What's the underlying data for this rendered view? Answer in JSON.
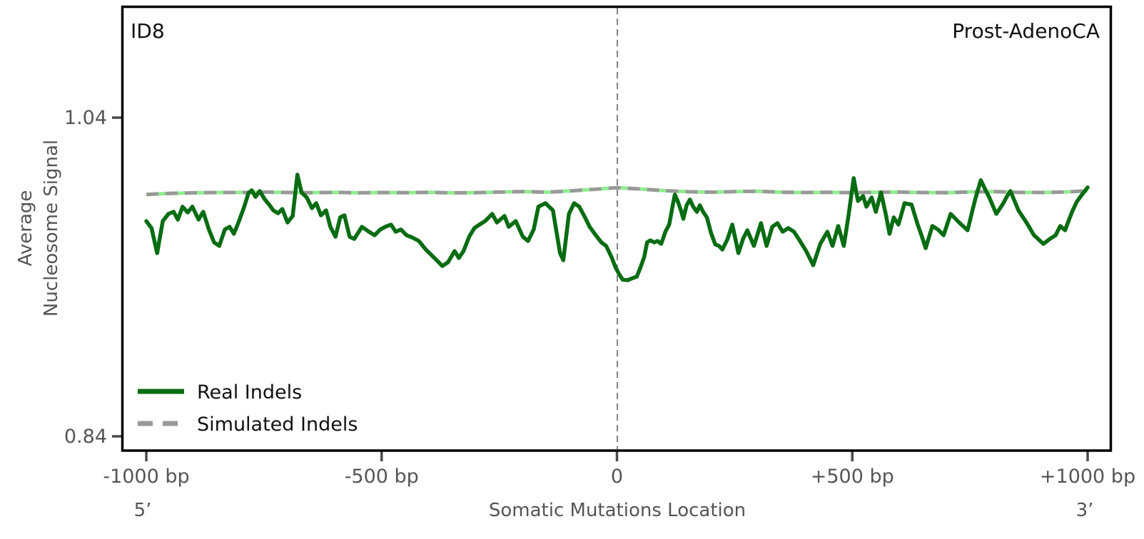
{
  "header": {
    "left_label": "ID8",
    "right_label": "Prost-AdenoCA"
  },
  "colors": {
    "real": "#076c12",
    "simulated": "#999999",
    "simulated_gap": "#90ee90",
    "frame": "#000000",
    "tick_mark": "#4a4a4a",
    "tick_label": "#555555",
    "axis_label": "#555555",
    "center_line": "#8a8a8a",
    "background": "#ffffff"
  },
  "chart_data": {
    "type": "line",
    "title": "",
    "xlabel": "Somatic Mutations Location",
    "ylabel_line1": "Average",
    "ylabel_line2": "Nucleosome Signal",
    "grid": false,
    "legend_position": "lower left",
    "center_line_bp": 0,
    "x_axis": {
      "range_bp": [
        -1000,
        1000
      ],
      "ticks": [
        {
          "bp": -1000,
          "label": "-1000 bp"
        },
        {
          "bp": -500,
          "label": "-500 bp"
        },
        {
          "bp": 0,
          "label": "0"
        },
        {
          "bp": 500,
          "label": "+500 bp"
        },
        {
          "bp": 1000,
          "label": "+1000 bp"
        }
      ],
      "left_end_label": "5’",
      "right_end_label": "3’"
    },
    "y_axis": {
      "range": [
        0.84,
        1.04
      ],
      "ticks": [
        {
          "value": 1.04,
          "label": "1.04"
        },
        {
          "value": 0.84,
          "label": "0.84"
        }
      ]
    },
    "legend": [
      {
        "name": "Real Indels",
        "style": "solid",
        "color": "#076c12"
      },
      {
        "name": "Simulated Indels",
        "style": "dashed",
        "color": "#999999",
        "gap_color": "#90ee90"
      }
    ],
    "series": [
      {
        "name": "Real Indels",
        "points": [
          [
            -1000,
            0.9751
          ],
          [
            -989,
            0.9707
          ],
          [
            -977,
            0.955
          ],
          [
            -965,
            0.9751
          ],
          [
            -953,
            0.9796
          ],
          [
            -942,
            0.9809
          ],
          [
            -933,
            0.976
          ],
          [
            -923,
            0.9841
          ],
          [
            -912,
            0.9805
          ],
          [
            -902,
            0.9841
          ],
          [
            -889,
            0.976
          ],
          [
            -879,
            0.9809
          ],
          [
            -867,
            0.9698
          ],
          [
            -856,
            0.9617
          ],
          [
            -845,
            0.9595
          ],
          [
            -833,
            0.9698
          ],
          [
            -823,
            0.9715
          ],
          [
            -814,
            0.9671
          ],
          [
            -803,
            0.9751
          ],
          [
            -792,
            0.9841
          ],
          [
            -783,
            0.9926
          ],
          [
            -776,
            0.9944
          ],
          [
            -768,
            0.9903
          ],
          [
            -759,
            0.9939
          ],
          [
            -748,
            0.9886
          ],
          [
            -739,
            0.9854
          ],
          [
            -730,
            0.9818
          ],
          [
            -720,
            0.98
          ],
          [
            -711,
            0.9827
          ],
          [
            -700,
            0.9742
          ],
          [
            -689,
            0.9783
          ],
          [
            -679,
            1.0042
          ],
          [
            -670,
            0.993
          ],
          [
            -659,
            0.9899
          ],
          [
            -648,
            0.9832
          ],
          [
            -639,
            0.9863
          ],
          [
            -629,
            0.9787
          ],
          [
            -618,
            0.9818
          ],
          [
            -609,
            0.9715
          ],
          [
            -598,
            0.9653
          ],
          [
            -588,
            0.9774
          ],
          [
            -579,
            0.9787
          ],
          [
            -568,
            0.9653
          ],
          [
            -558,
            0.9639
          ],
          [
            -542,
            0.9715
          ],
          [
            -527,
            0.9684
          ],
          [
            -515,
            0.9662
          ],
          [
            -503,
            0.9698
          ],
          [
            -492,
            0.9715
          ],
          [
            -480,
            0.9729
          ],
          [
            -470,
            0.9684
          ],
          [
            -459,
            0.9698
          ],
          [
            -447,
            0.9662
          ],
          [
            -435,
            0.9648
          ],
          [
            -421,
            0.9626
          ],
          [
            -406,
            0.9572
          ],
          [
            -394,
            0.9537
          ],
          [
            -383,
            0.9505
          ],
          [
            -371,
            0.9469
          ],
          [
            -359,
            0.9492
          ],
          [
            -345,
            0.9563
          ],
          [
            -336,
            0.9519
          ],
          [
            -326,
            0.9563
          ],
          [
            -314,
            0.9653
          ],
          [
            -303,
            0.9707
          ],
          [
            -292,
            0.9729
          ],
          [
            -280,
            0.9751
          ],
          [
            -265,
            0.9796
          ],
          [
            -255,
            0.9742
          ],
          [
            -239,
            0.9783
          ],
          [
            -230,
            0.9715
          ],
          [
            -215,
            0.9751
          ],
          [
            -200,
            0.9653
          ],
          [
            -189,
            0.9626
          ],
          [
            -177,
            0.9698
          ],
          [
            -167,
            0.9841
          ],
          [
            -152,
            0.9863
          ],
          [
            -136,
            0.9818
          ],
          [
            -121,
            0.955
          ],
          [
            -114,
            0.9505
          ],
          [
            -102,
            0.9796
          ],
          [
            -91,
            0.9863
          ],
          [
            -80,
            0.9841
          ],
          [
            -68,
            0.9774
          ],
          [
            -58,
            0.9715
          ],
          [
            -45,
            0.9662
          ],
          [
            -33,
            0.9617
          ],
          [
            -23,
            0.9595
          ],
          [
            -12,
            0.9528
          ],
          [
            -3,
            0.946
          ],
          [
            5,
            0.9416
          ],
          [
            12,
            0.9384
          ],
          [
            23,
            0.938
          ],
          [
            33,
            0.9393
          ],
          [
            42,
            0.9402
          ],
          [
            50,
            0.946
          ],
          [
            58,
            0.9528
          ],
          [
            64,
            0.9617
          ],
          [
            71,
            0.963
          ],
          [
            79,
            0.9617
          ],
          [
            86,
            0.9626
          ],
          [
            94,
            0.9608
          ],
          [
            103,
            0.9684
          ],
          [
            111,
            0.9729
          ],
          [
            118,
            0.9841
          ],
          [
            123,
            0.9917
          ],
          [
            129,
            0.9877
          ],
          [
            136,
            0.9818
          ],
          [
            141,
            0.9765
          ],
          [
            148,
            0.985
          ],
          [
            155,
            0.9886
          ],
          [
            162,
            0.9841
          ],
          [
            170,
            0.9809
          ],
          [
            176,
            0.985
          ],
          [
            183,
            0.9809
          ],
          [
            191,
            0.9774
          ],
          [
            200,
            0.9675
          ],
          [
            209,
            0.9604
          ],
          [
            217,
            0.9595
          ],
          [
            224,
            0.9572
          ],
          [
            235,
            0.9639
          ],
          [
            245,
            0.9729
          ],
          [
            258,
            0.955
          ],
          [
            268,
            0.9639
          ],
          [
            277,
            0.9693
          ],
          [
            291,
            0.9595
          ],
          [
            306,
            0.9738
          ],
          [
            318,
            0.9595
          ],
          [
            330,
            0.9715
          ],
          [
            341,
            0.9738
          ],
          [
            352,
            0.9684
          ],
          [
            364,
            0.9707
          ],
          [
            376,
            0.9684
          ],
          [
            386,
            0.9639
          ],
          [
            402,
            0.9563
          ],
          [
            417,
            0.9474
          ],
          [
            432,
            0.9608
          ],
          [
            447,
            0.9684
          ],
          [
            458,
            0.9595
          ],
          [
            470,
            0.972
          ],
          [
            482,
            0.9595
          ],
          [
            492,
            0.9787
          ],
          [
            503,
            1.002
          ],
          [
            512,
            0.9877
          ],
          [
            523,
            0.9908
          ],
          [
            530,
            0.9841
          ],
          [
            541,
            0.9899
          ],
          [
            550,
            0.9809
          ],
          [
            561,
            0.993
          ],
          [
            571,
            0.9796
          ],
          [
            579,
            0.9671
          ],
          [
            588,
            0.9774
          ],
          [
            598,
            0.9729
          ],
          [
            611,
            0.9863
          ],
          [
            626,
            0.9854
          ],
          [
            639,
            0.9729
          ],
          [
            648,
            0.9653
          ],
          [
            656,
            0.9581
          ],
          [
            670,
            0.972
          ],
          [
            682,
            0.9698
          ],
          [
            694,
            0.9662
          ],
          [
            709,
            0.9796
          ],
          [
            727,
            0.9742
          ],
          [
            745,
            0.9693
          ],
          [
            761,
            0.9886
          ],
          [
            773,
            1.0007
          ],
          [
            782,
            0.9953
          ],
          [
            791,
            0.9899
          ],
          [
            806,
            0.9796
          ],
          [
            821,
            0.9863
          ],
          [
            829,
            0.9908
          ],
          [
            836,
            0.9939
          ],
          [
            853,
            0.9818
          ],
          [
            871,
            0.9738
          ],
          [
            886,
            0.9662
          ],
          [
            906,
            0.9608
          ],
          [
            920,
            0.9639
          ],
          [
            932,
            0.9662
          ],
          [
            942,
            0.972
          ],
          [
            952,
            0.9693
          ],
          [
            967,
            0.9809
          ],
          [
            977,
            0.9872
          ],
          [
            988,
            0.9917
          ],
          [
            1000,
            0.9962
          ]
        ]
      },
      {
        "name": "Simulated Indels",
        "points": [
          [
            -1000,
            0.9918
          ],
          [
            -950,
            0.9925
          ],
          [
            -900,
            0.9928
          ],
          [
            -850,
            0.993
          ],
          [
            -800,
            0.993
          ],
          [
            -750,
            0.9933
          ],
          [
            -700,
            0.993
          ],
          [
            -650,
            0.9929
          ],
          [
            -600,
            0.9931
          ],
          [
            -550,
            0.9928
          ],
          [
            -500,
            0.993
          ],
          [
            -450,
            0.9929
          ],
          [
            -400,
            0.9931
          ],
          [
            -350,
            0.9928
          ],
          [
            -300,
            0.9929
          ],
          [
            -250,
            0.9933
          ],
          [
            -200,
            0.9936
          ],
          [
            -150,
            0.9932
          ],
          [
            -100,
            0.994
          ],
          [
            -50,
            0.995
          ],
          [
            0,
            0.996
          ],
          [
            50,
            0.9952
          ],
          [
            100,
            0.9942
          ],
          [
            150,
            0.9935
          ],
          [
            200,
            0.9932
          ],
          [
            250,
            0.9936
          ],
          [
            300,
            0.9938
          ],
          [
            350,
            0.9932
          ],
          [
            400,
            0.993
          ],
          [
            450,
            0.9931
          ],
          [
            500,
            0.9929
          ],
          [
            550,
            0.9932
          ],
          [
            600,
            0.9933
          ],
          [
            650,
            0.993
          ],
          [
            700,
            0.9929
          ],
          [
            750,
            0.9934
          ],
          [
            800,
            0.9936
          ],
          [
            850,
            0.9931
          ],
          [
            900,
            0.993
          ],
          [
            950,
            0.9933
          ],
          [
            1000,
            0.9941
          ]
        ]
      }
    ]
  }
}
